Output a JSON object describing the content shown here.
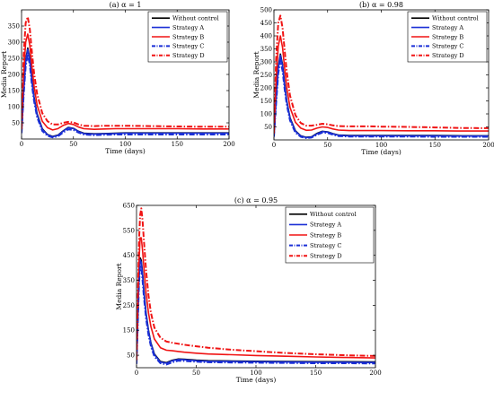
{
  "chart_data": [
    {
      "type": "line",
      "title": "(a) α = 1",
      "xlabel": "Time (days)",
      "ylabel": "Media Report",
      "xlim": [
        0,
        200
      ],
      "ylim": [
        0,
        400
      ],
      "xticks": [
        0,
        50,
        100,
        150,
        200
      ],
      "yticks": [
        50,
        100,
        150,
        200,
        250,
        300,
        350
      ],
      "legend_position": "top-right",
      "series": [
        {
          "name": "Without control",
          "color": "#000000",
          "style": "solid",
          "x": [
            0,
            2,
            4,
            6,
            8,
            10,
            12,
            15,
            20,
            25,
            30,
            35,
            40,
            45,
            50,
            55,
            60,
            70,
            80,
            90,
            100,
            125,
            150,
            175,
            200
          ],
          "y": [
            20,
            150,
            245,
            282,
            250,
            185,
            130,
            78,
            32,
            14,
            8,
            12,
            25,
            36,
            33,
            24,
            18,
            16,
            17,
            18,
            19,
            19,
            19,
            19,
            19
          ]
        },
        {
          "name": "Strategy A",
          "color": "#1a2fd6",
          "style": "solid",
          "x": [
            0,
            2,
            4,
            6,
            8,
            10,
            12,
            15,
            20,
            25,
            30,
            35,
            40,
            45,
            50,
            55,
            60,
            70,
            80,
            90,
            100,
            125,
            150,
            175,
            200
          ],
          "y": [
            20,
            145,
            240,
            278,
            245,
            180,
            126,
            75,
            30,
            13,
            7,
            11,
            24,
            35,
            32,
            23,
            17,
            15,
            16,
            17,
            18,
            18,
            18,
            18,
            18
          ]
        },
        {
          "name": "Strategy B",
          "color": "#f01414",
          "style": "solid",
          "x": [
            0,
            2,
            4,
            6,
            8,
            10,
            12,
            15,
            20,
            25,
            30,
            35,
            40,
            45,
            50,
            55,
            60,
            70,
            80,
            90,
            100,
            125,
            150,
            175,
            200
          ],
          "y": [
            25,
            200,
            300,
            325,
            290,
            225,
            165,
            105,
            55,
            35,
            28,
            32,
            42,
            48,
            45,
            37,
            32,
            30,
            31,
            32,
            32,
            32,
            32,
            31,
            31
          ]
        },
        {
          "name": "Strategy C",
          "color": "#1a2fd6",
          "style": "dashdot",
          "x": [
            0,
            2,
            4,
            6,
            8,
            10,
            12,
            15,
            20,
            25,
            30,
            35,
            40,
            45,
            50,
            55,
            60,
            70,
            80,
            90,
            100,
            125,
            150,
            175,
            200
          ],
          "y": [
            18,
            135,
            225,
            262,
            230,
            168,
            118,
            68,
            25,
            10,
            5,
            8,
            20,
            30,
            28,
            20,
            14,
            12,
            13,
            14,
            14,
            14,
            14,
            14,
            14
          ]
        },
        {
          "name": "Strategy D",
          "color": "#f01414",
          "style": "dashdot",
          "x": [
            0,
            2,
            4,
            6,
            8,
            10,
            12,
            15,
            20,
            25,
            30,
            35,
            40,
            45,
            50,
            55,
            60,
            70,
            80,
            90,
            100,
            125,
            150,
            175,
            200
          ],
          "y": [
            30,
            260,
            360,
            378,
            340,
            270,
            205,
            140,
            80,
            55,
            45,
            45,
            50,
            53,
            51,
            45,
            41,
            40,
            41,
            41,
            41,
            40,
            39,
            38,
            38
          ]
        }
      ]
    },
    {
      "type": "line",
      "title": "(b) α = 0.98",
      "xlabel": "Time (days)",
      "ylabel": "Media Report",
      "xlim": [
        0,
        200
      ],
      "ylim": [
        0,
        500
      ],
      "xticks": [
        0,
        50,
        100,
        150,
        200
      ],
      "yticks": [
        50,
        100,
        150,
        200,
        250,
        300,
        350,
        400,
        450,
        500
      ],
      "legend_position": "top-right",
      "series": [
        {
          "name": "Without control",
          "color": "#000000",
          "style": "solid",
          "x": [
            0,
            2,
            4,
            6,
            8,
            10,
            12,
            15,
            20,
            25,
            30,
            35,
            40,
            45,
            50,
            55,
            60,
            70,
            80,
            90,
            100,
            125,
            150,
            175,
            200
          ],
          "y": [
            15,
            160,
            280,
            330,
            290,
            215,
            150,
            85,
            35,
            16,
            10,
            12,
            25,
            33,
            31,
            24,
            19,
            17,
            17,
            17,
            17,
            17,
            17,
            16,
            16
          ]
        },
        {
          "name": "Strategy A",
          "color": "#1a2fd6",
          "style": "solid",
          "x": [
            0,
            2,
            4,
            6,
            8,
            10,
            12,
            15,
            20,
            25,
            30,
            35,
            40,
            45,
            50,
            55,
            60,
            70,
            80,
            90,
            100,
            125,
            150,
            175,
            200
          ],
          "y": [
            15,
            155,
            275,
            325,
            285,
            210,
            146,
            82,
            33,
            15,
            9,
            11,
            23,
            32,
            30,
            23,
            18,
            16,
            16,
            16,
            16,
            16,
            16,
            15,
            15
          ]
        },
        {
          "name": "Strategy B",
          "color": "#f01414",
          "style": "solid",
          "x": [
            0,
            2,
            4,
            6,
            8,
            10,
            12,
            15,
            20,
            25,
            30,
            35,
            40,
            45,
            50,
            55,
            60,
            70,
            80,
            90,
            100,
            125,
            150,
            175,
            200
          ],
          "y": [
            20,
            230,
            360,
            400,
            355,
            275,
            200,
            125,
            68,
            45,
            37,
            38,
            45,
            50,
            48,
            42,
            38,
            36,
            36,
            36,
            36,
            35,
            35,
            34,
            34
          ]
        },
        {
          "name": "Strategy C",
          "color": "#1a2fd6",
          "style": "dashdot",
          "x": [
            0,
            2,
            4,
            6,
            8,
            10,
            12,
            15,
            20,
            25,
            30,
            35,
            40,
            45,
            50,
            55,
            60,
            70,
            80,
            90,
            100,
            125,
            150,
            175,
            200
          ],
          "y": [
            12,
            140,
            255,
            305,
            265,
            195,
            135,
            75,
            28,
            12,
            7,
            9,
            20,
            28,
            27,
            20,
            15,
            13,
            13,
            13,
            13,
            13,
            12,
            12,
            12
          ]
        },
        {
          "name": "Strategy D",
          "color": "#f01414",
          "style": "dashdot",
          "x": [
            0,
            2,
            4,
            6,
            8,
            10,
            12,
            15,
            20,
            25,
            30,
            35,
            40,
            45,
            50,
            55,
            60,
            70,
            80,
            90,
            100,
            125,
            150,
            175,
            200
          ],
          "y": [
            25,
            310,
            450,
            478,
            430,
            345,
            260,
            170,
            95,
            65,
            55,
            55,
            58,
            62,
            60,
            56,
            53,
            52,
            52,
            52,
            51,
            50,
            48,
            46,
            45
          ]
        }
      ]
    },
    {
      "type": "line",
      "title": "(c) α = 0.95",
      "xlabel": "Time (days)",
      "ylabel": "Media Report",
      "xlim": [
        0,
        200
      ],
      "ylim": [
        0,
        650
      ],
      "xticks": [
        0,
        50,
        100,
        150,
        200
      ],
      "yticks": [
        50,
        150,
        250,
        350,
        450,
        550,
        650
      ],
      "legend_position": "top-right",
      "series": [
        {
          "name": "Without control",
          "color": "#000000",
          "style": "solid",
          "x": [
            0,
            1,
            2,
            3,
            4,
            5,
            6,
            8,
            10,
            12,
            15,
            20,
            25,
            30,
            35,
            40,
            50,
            60,
            80,
            100,
            125,
            150,
            175,
            200
          ],
          "y": [
            20,
            180,
            360,
            440,
            430,
            380,
            320,
            220,
            150,
            100,
            55,
            25,
            20,
            30,
            35,
            34,
            30,
            28,
            27,
            26,
            25,
            24,
            24,
            23
          ]
        },
        {
          "name": "Strategy A",
          "color": "#1a2fd6",
          "style": "solid",
          "x": [
            0,
            1,
            2,
            3,
            4,
            5,
            6,
            8,
            10,
            12,
            15,
            20,
            25,
            30,
            35,
            40,
            50,
            60,
            80,
            100,
            125,
            150,
            175,
            200
          ],
          "y": [
            20,
            175,
            355,
            432,
            422,
            372,
            312,
            214,
            146,
            97,
            52,
            23,
            18,
            28,
            33,
            32,
            28,
            26,
            25,
            24,
            23,
            22,
            22,
            21
          ]
        },
        {
          "name": "Strategy B",
          "color": "#f01414",
          "style": "solid",
          "x": [
            0,
            1,
            2,
            3,
            4,
            5,
            6,
            8,
            10,
            12,
            15,
            20,
            25,
            30,
            35,
            40,
            50,
            60,
            80,
            100,
            125,
            150,
            175,
            200
          ],
          "y": [
            25,
            220,
            420,
            520,
            520,
            470,
            410,
            300,
            220,
            165,
            115,
            80,
            70,
            68,
            65,
            62,
            58,
            55,
            52,
            49,
            46,
            43,
            41,
            39
          ]
        },
        {
          "name": "Strategy C",
          "color": "#1a2fd6",
          "style": "dashdot",
          "x": [
            0,
            1,
            2,
            3,
            4,
            5,
            6,
            8,
            10,
            12,
            15,
            20,
            25,
            30,
            35,
            40,
            50,
            60,
            80,
            100,
            125,
            150,
            175,
            200
          ],
          "y": [
            15,
            160,
            330,
            410,
            400,
            350,
            292,
            198,
            132,
            86,
            45,
            18,
            13,
            22,
            28,
            27,
            24,
            22,
            21,
            20,
            19,
            18,
            18,
            17
          ]
        },
        {
          "name": "Strategy D",
          "color": "#f01414",
          "style": "dashdot",
          "x": [
            0,
            1,
            2,
            3,
            4,
            5,
            6,
            8,
            10,
            12,
            15,
            20,
            25,
            30,
            35,
            40,
            50,
            60,
            80,
            100,
            125,
            150,
            175,
            200
          ],
          "y": [
            30,
            260,
            500,
            610,
            638,
            590,
            520,
            390,
            290,
            220,
            160,
            120,
            105,
            100,
            96,
            92,
            86,
            80,
            72,
            66,
            59,
            54,
            50,
            47
          ]
        }
      ]
    }
  ]
}
